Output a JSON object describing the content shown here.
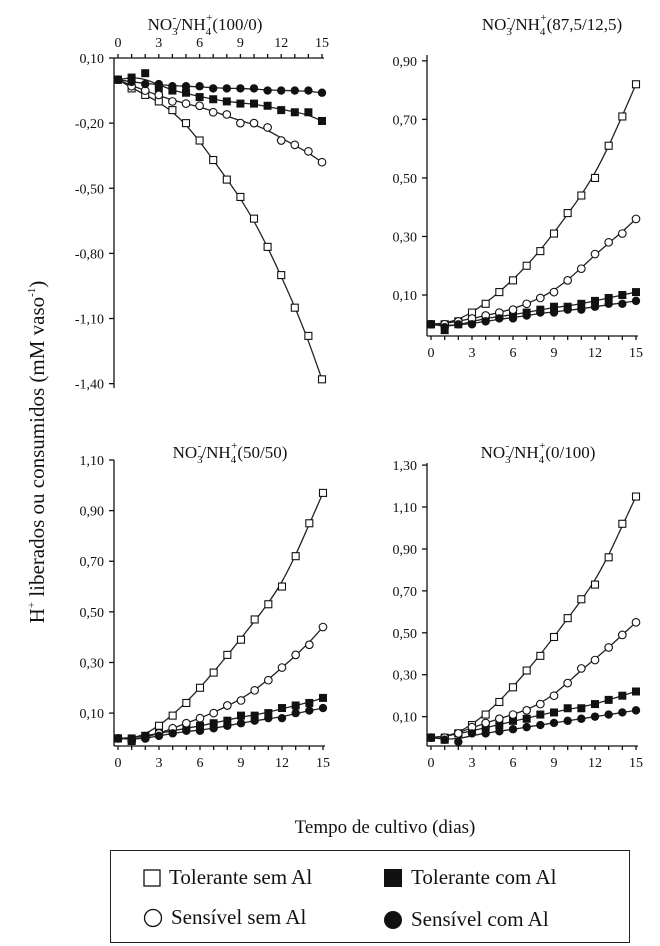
{
  "chart_data": {
    "type": "line",
    "ylabel_main": "H",
    "ylabel_sup": "+",
    "ylabel_rest": " liberados ou consumidos (mM vaso",
    "ylabel_unit_sup": "-1",
    "ylabel_end": ")",
    "xlabel": "Tempo de cultivo (dias)",
    "legend": [
      {
        "name": "Tolerante sem Al",
        "marker": "open-square"
      },
      {
        "name": "Tolerante com Al",
        "marker": "filled-square"
      },
      {
        "name": "Sensível sem Al",
        "marker": "open-circle"
      },
      {
        "name": "Sensível com Al",
        "marker": "filled-circle"
      }
    ],
    "panels": [
      {
        "title": {
          "a": "NO",
          "a_sub": "3",
          "a_sup": "-",
          "b": "/NH",
          "b_sub": "4",
          "b_sup": "+",
          "c": "(100/0)"
        },
        "x_ticks": [
          "0",
          "3",
          "6",
          "9",
          "12",
          "15"
        ],
        "y_ticks": [
          "0,10",
          "-0,20",
          "-0,50",
          "-0,80",
          "-1,10",
          "-1,40"
        ],
        "y_tick_values": [
          0.1,
          -0.2,
          -0.5,
          -0.8,
          -1.1,
          -1.4
        ],
        "xlim": [
          0,
          15
        ],
        "ylim": [
          -1.42,
          0.1
        ],
        "x_axis_position": "top",
        "series": [
          {
            "name": "Tolerante sem Al",
            "x": [
              0,
              1,
              2,
              3,
              4,
              5,
              6,
              7,
              8,
              9,
              10,
              11,
              12,
              13,
              14,
              15
            ],
            "y": [
              0.0,
              -0.04,
              -0.07,
              -0.1,
              -0.14,
              -0.2,
              -0.28,
              -0.37,
              -0.46,
              -0.54,
              -0.64,
              -0.77,
              -0.9,
              -1.05,
              -1.18,
              -1.38
            ]
          },
          {
            "name": "Tolerante com Al",
            "x": [
              0,
              1,
              2,
              3,
              4,
              5,
              6,
              7,
              8,
              9,
              10,
              11,
              12,
              13,
              14,
              15
            ],
            "y": [
              0.0,
              0.01,
              0.03,
              -0.04,
              -0.05,
              -0.06,
              -0.08,
              -0.09,
              -0.1,
              -0.11,
              -0.11,
              -0.12,
              -0.14,
              -0.15,
              -0.15,
              -0.19
            ]
          },
          {
            "name": "Sensível sem Al",
            "x": [
              0,
              1,
              2,
              3,
              4,
              5,
              6,
              7,
              8,
              9,
              10,
              11,
              12,
              13,
              14,
              15
            ],
            "y": [
              0.0,
              -0.03,
              -0.05,
              -0.07,
              -0.1,
              -0.11,
              -0.12,
              -0.15,
              -0.16,
              -0.2,
              -0.2,
              -0.22,
              -0.28,
              -0.3,
              -0.33,
              -0.38
            ]
          },
          {
            "name": "Sensível com Al",
            "x": [
              0,
              1,
              2,
              3,
              4,
              5,
              6,
              7,
              8,
              9,
              10,
              11,
              12,
              13,
              14,
              15
            ],
            "y": [
              0.0,
              -0.01,
              -0.02,
              -0.02,
              -0.03,
              -0.03,
              -0.03,
              -0.04,
              -0.04,
              -0.04,
              -0.04,
              -0.05,
              -0.05,
              -0.05,
              -0.05,
              -0.06
            ]
          }
        ]
      },
      {
        "title": {
          "a": "NO",
          "a_sub": "3",
          "a_sup": "-",
          "b": "/NH",
          "b_sub": "4",
          "b_sup": "+",
          "c": "(87,5/12,5)"
        },
        "x_ticks": [
          "0",
          "3",
          "6",
          "9",
          "12",
          "15"
        ],
        "y_ticks": [
          "0,90",
          "0,70",
          "0,50",
          "0,30",
          "0,10"
        ],
        "y_tick_values": [
          0.9,
          0.7,
          0.5,
          0.3,
          0.1
        ],
        "xlim": [
          0,
          15
        ],
        "ylim": [
          -0.04,
          0.92
        ],
        "x_axis_position": "bottom",
        "series": [
          {
            "name": "Tolerante sem Al",
            "x": [
              0,
              1,
              2,
              3,
              4,
              5,
              6,
              7,
              8,
              9,
              10,
              11,
              12,
              13,
              14,
              15
            ],
            "y": [
              0.0,
              0.0,
              0.01,
              0.04,
              0.07,
              0.11,
              0.15,
              0.2,
              0.25,
              0.31,
              0.38,
              0.44,
              0.5,
              0.61,
              0.71,
              0.82
            ]
          },
          {
            "name": "Tolerante com Al",
            "x": [
              0,
              1,
              2,
              3,
              4,
              5,
              6,
              7,
              8,
              9,
              10,
              11,
              12,
              13,
              14,
              15
            ],
            "y": [
              0.0,
              -0.02,
              0.0,
              0.01,
              0.02,
              0.03,
              0.03,
              0.04,
              0.05,
              0.06,
              0.06,
              0.07,
              0.08,
              0.09,
              0.1,
              0.11
            ]
          },
          {
            "name": "Sensível sem Al",
            "x": [
              0,
              1,
              2,
              3,
              4,
              5,
              6,
              7,
              8,
              9,
              10,
              11,
              12,
              13,
              14,
              15
            ],
            "y": [
              0.0,
              0.0,
              0.01,
              0.02,
              0.03,
              0.04,
              0.05,
              0.07,
              0.09,
              0.11,
              0.15,
              0.19,
              0.24,
              0.28,
              0.31,
              0.36
            ]
          },
          {
            "name": "Sensível com Al",
            "x": [
              0,
              1,
              2,
              3,
              4,
              5,
              6,
              7,
              8,
              9,
              10,
              11,
              12,
              13,
              14,
              15
            ],
            "y": [
              0.0,
              -0.01,
              0.0,
              0.0,
              0.01,
              0.02,
              0.02,
              0.03,
              0.04,
              0.04,
              0.05,
              0.05,
              0.06,
              0.07,
              0.07,
              0.08
            ]
          }
        ]
      },
      {
        "title": {
          "a": "NO",
          "a_sub": "3",
          "a_sup": "-",
          "b": "/NH",
          "b_sub": "4",
          "b_sup": "+",
          "c": "(50/50)"
        },
        "x_ticks": [
          "0",
          "3",
          "6",
          "9",
          "12",
          "15"
        ],
        "y_ticks": [
          "1,10",
          "0,90",
          "0,70",
          "0,50",
          "0,30",
          "0,10"
        ],
        "y_tick_values": [
          1.1,
          0.9,
          0.7,
          0.5,
          0.3,
          0.1
        ],
        "xlim": [
          0,
          15
        ],
        "ylim": [
          -0.03,
          1.1
        ],
        "x_axis_position": "bottom",
        "series": [
          {
            "name": "Tolerante sem Al",
            "x": [
              0,
              1,
              2,
              3,
              4,
              5,
              6,
              7,
              8,
              9,
              10,
              11,
              12,
              13,
              14,
              15
            ],
            "y": [
              0.0,
              -0.01,
              0.01,
              0.05,
              0.09,
              0.14,
              0.2,
              0.26,
              0.33,
              0.39,
              0.47,
              0.53,
              0.6,
              0.72,
              0.85,
              0.97
            ]
          },
          {
            "name": "Tolerante com Al",
            "x": [
              0,
              1,
              2,
              3,
              4,
              5,
              6,
              7,
              8,
              9,
              10,
              11,
              12,
              13,
              14,
              15
            ],
            "y": [
              0.0,
              0.0,
              0.01,
              0.02,
              0.03,
              0.04,
              0.05,
              0.06,
              0.07,
              0.09,
              0.09,
              0.1,
              0.12,
              0.13,
              0.14,
              0.16
            ]
          },
          {
            "name": "Sensível sem Al",
            "x": [
              0,
              1,
              2,
              3,
              4,
              5,
              6,
              7,
              8,
              9,
              10,
              11,
              12,
              13,
              14,
              15
            ],
            "y": [
              0.0,
              -0.01,
              0.0,
              0.02,
              0.04,
              0.06,
              0.08,
              0.1,
              0.13,
              0.15,
              0.19,
              0.23,
              0.28,
              0.33,
              0.37,
              0.44
            ]
          },
          {
            "name": "Sensível com Al",
            "x": [
              0,
              1,
              2,
              3,
              4,
              5,
              6,
              7,
              8,
              9,
              10,
              11,
              12,
              13,
              14,
              15
            ],
            "y": [
              0.0,
              -0.01,
              0.0,
              0.01,
              0.02,
              0.03,
              0.03,
              0.04,
              0.05,
              0.06,
              0.07,
              0.08,
              0.08,
              0.1,
              0.11,
              0.12
            ]
          }
        ]
      },
      {
        "title": {
          "a": "NO",
          "a_sub": "3",
          "a_sup": "-",
          "b": "/NH",
          "b_sub": "4",
          "b_sup": "+",
          "c": "(0/100)"
        },
        "x_ticks": [
          "0",
          "3",
          "6",
          "9",
          "12",
          "15"
        ],
        "y_ticks": [
          "1,30",
          "1,10",
          "0,90",
          "0,70",
          "0,50",
          "0,30",
          "0,10"
        ],
        "y_tick_values": [
          1.3,
          1.1,
          0.9,
          0.7,
          0.5,
          0.3,
          0.1
        ],
        "xlim": [
          0,
          15
        ],
        "ylim": [
          -0.04,
          1.31
        ],
        "x_axis_position": "bottom",
        "series": [
          {
            "name": "Tolerante sem Al",
            "x": [
              0,
              1,
              2,
              3,
              4,
              5,
              6,
              7,
              8,
              9,
              10,
              11,
              12,
              13,
              14,
              15
            ],
            "y": [
              0.0,
              -0.01,
              0.02,
              0.06,
              0.11,
              0.17,
              0.24,
              0.32,
              0.39,
              0.48,
              0.57,
              0.66,
              0.73,
              0.86,
              1.02,
              1.15
            ]
          },
          {
            "name": "Tolerante com Al",
            "x": [
              0,
              1,
              2,
              3,
              4,
              5,
              6,
              7,
              8,
              9,
              10,
              11,
              12,
              13,
              14,
              15
            ],
            "y": [
              0.0,
              0.0,
              0.02,
              0.03,
              0.05,
              0.06,
              0.08,
              0.09,
              0.11,
              0.12,
              0.14,
              0.14,
              0.16,
              0.18,
              0.2,
              0.22
            ]
          },
          {
            "name": "Sensível sem Al",
            "x": [
              0,
              1,
              2,
              3,
              4,
              5,
              6,
              7,
              8,
              9,
              10,
              11,
              12,
              13,
              14,
              15
            ],
            "y": [
              0.0,
              0.0,
              0.02,
              0.05,
              0.07,
              0.09,
              0.11,
              0.13,
              0.16,
              0.2,
              0.26,
              0.33,
              0.37,
              0.43,
              0.49,
              0.55
            ]
          },
          {
            "name": "Sensível com Al",
            "x": [
              0,
              1,
              2,
              3,
              4,
              5,
              6,
              7,
              8,
              9,
              10,
              11,
              12,
              13,
              14,
              15
            ],
            "y": [
              0.0,
              -0.01,
              -0.02,
              0.02,
              0.02,
              0.03,
              0.04,
              0.05,
              0.06,
              0.07,
              0.08,
              0.09,
              0.1,
              0.11,
              0.12,
              0.13
            ]
          }
        ]
      }
    ]
  }
}
